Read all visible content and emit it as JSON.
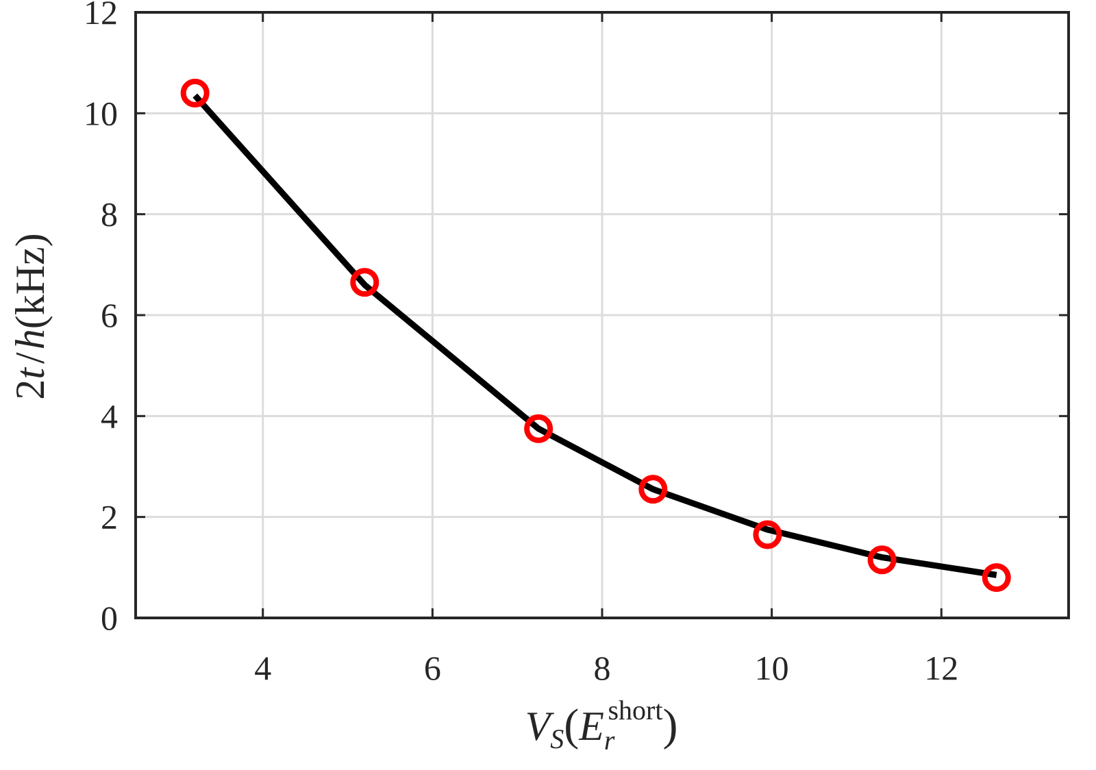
{
  "chart_data": {
    "type": "line",
    "xlabel": {
      "main": "V",
      "main_sub": "S",
      "open": "(",
      "inner": "E",
      "inner_sub": "r",
      "inner_sup": "short",
      "close": ")"
    },
    "ylabel": {
      "prefix": "2",
      "t": "t",
      "slash": "/",
      "h": "h",
      "unit": "(kHz)"
    },
    "xlim": [
      2.5,
      13.5
    ],
    "ylim": [
      0,
      12
    ],
    "xticks": [
      4,
      6,
      8,
      10,
      12
    ],
    "xtick_labels": [
      "4",
      "6",
      "8",
      "10",
      "12"
    ],
    "yticks": [
      0,
      2,
      4,
      6,
      8,
      10,
      12
    ],
    "ytick_labels": [
      "0",
      "2",
      "4",
      "6",
      "8",
      "10",
      "12"
    ],
    "grid": true,
    "series": [
      {
        "style": "line",
        "color": "#000000",
        "x": [
          3.2,
          5.2,
          7.25,
          8.6,
          9.95,
          11.3,
          12.65
        ],
        "y": [
          10.35,
          6.6,
          3.75,
          2.55,
          1.75,
          1.2,
          0.85
        ]
      },
      {
        "style": "markers",
        "marker": "circle-open",
        "color": "#ff0000",
        "x": [
          3.2,
          5.2,
          7.25,
          8.6,
          9.95,
          11.3,
          12.65
        ],
        "y": [
          10.4,
          6.65,
          3.75,
          2.55,
          1.65,
          1.15,
          0.8
        ]
      }
    ]
  }
}
